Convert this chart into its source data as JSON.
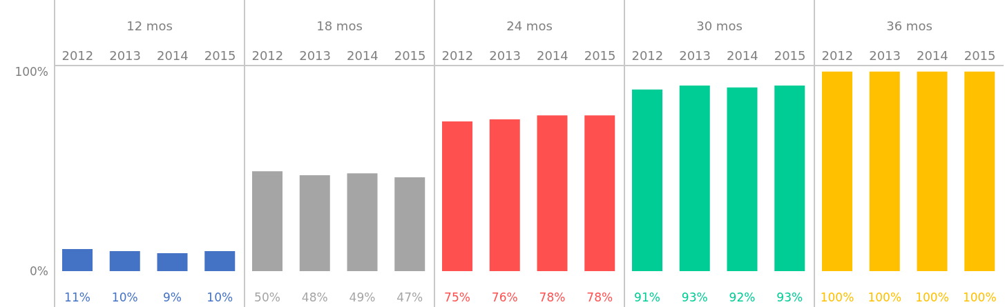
{
  "chart_data": [
    {
      "type": "bar",
      "title": "12 mos",
      "categories": [
        "2012",
        "2013",
        "2014",
        "2015"
      ],
      "values": [
        11,
        10,
        9,
        10
      ],
      "color": "#4472c4",
      "value_labels": [
        "11%",
        "10%",
        "9%",
        "10%"
      ],
      "ylim": [
        -18,
        103
      ],
      "yticks": [
        {
          "value": 0,
          "label": "0%"
        },
        {
          "value": 100,
          "label": "100%"
        }
      ]
    },
    {
      "type": "bar",
      "title": "18 mos",
      "categories": [
        "2012",
        "2013",
        "2014",
        "2015"
      ],
      "values": [
        50,
        48,
        49,
        47
      ],
      "color": "#a5a5a5",
      "value_labels": [
        "50%",
        "48%",
        "49%",
        "47%"
      ],
      "ylim": [
        -18,
        103
      ],
      "tick_labels": "x"
    },
    {
      "type": "bar",
      "title": "24 mos",
      "categories": [
        "2012",
        "2013",
        "2014",
        "2015"
      ],
      "values": [
        75,
        76,
        78,
        78
      ],
      "color": "#ff5050",
      "value_labels": [
        "75%",
        "76%",
        "78%",
        "78%"
      ],
      "ylim": [
        -18,
        103
      ],
      "tick_labels": "x"
    },
    {
      "type": "bar",
      "title": "30 mos",
      "categories": [
        "2012",
        "2013",
        "2014",
        "2015"
      ],
      "values": [
        91,
        93,
        92,
        93
      ],
      "color": "#00cc96",
      "value_labels": [
        "91%",
        "93%",
        "92%",
        "93%"
      ],
      "ylim": [
        -18,
        103
      ],
      "tick_labels": "x"
    },
    {
      "type": "bar",
      "title": "36 mos",
      "categories": [
        "2012",
        "2013",
        "2014",
        "2015"
      ],
      "values": [
        100,
        100,
        100,
        100
      ],
      "color": "#ffc000",
      "value_labels": [
        "100%",
        "100%",
        "100%",
        "100%"
      ],
      "ylim": [
        -18,
        103
      ],
      "tick_labels": "x"
    }
  ]
}
